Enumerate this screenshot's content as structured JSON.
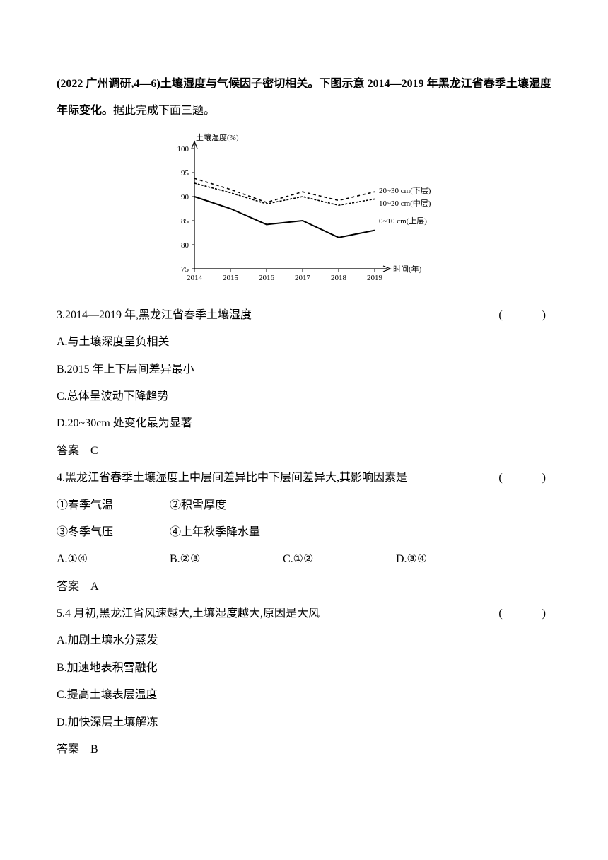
{
  "intro": {
    "bold_prefix": "(2022 广州调研,4—6)土壤湿度与气候因子密切相关。下图示意 2014—2019 年黑龙江省春季土壤湿度年际变化。",
    "tail": "据此完成下面三题。"
  },
  "chart": {
    "type": "line",
    "y_label": "土壤湿度(%)",
    "x_label": "时间(年)",
    "ylim": [
      75,
      100
    ],
    "ytick_step": 5,
    "yticks": [
      75,
      80,
      85,
      90,
      95,
      100
    ],
    "xticks": [
      2014,
      2015,
      2016,
      2017,
      2018,
      2019
    ],
    "series": [
      {
        "name": "20~30 cm(下层)",
        "dash": "4,4",
        "width": 1.6,
        "color": "#000000",
        "values": [
          93.8,
          91.5,
          88.8,
          91.0,
          89.2,
          91.0
        ]
      },
      {
        "name": "10~20 cm(中层)",
        "dash": "3,2",
        "width": 1.6,
        "color": "#000000",
        "values": [
          92.8,
          90.8,
          88.5,
          90.0,
          88.2,
          89.5
        ]
      },
      {
        "name": "0~10 cm(上层)",
        "dash": "0",
        "width": 2.0,
        "color": "#000000",
        "values": [
          90.0,
          87.5,
          84.2,
          85.0,
          81.5,
          83.0
        ]
      }
    ],
    "axis_color": "#000000",
    "background_color": "#ffffff",
    "font_size": 11
  },
  "q3": {
    "stem": "3.2014—2019 年,黑龙江省春季土壤湿度",
    "marker": "(　　)",
    "A": "A.与土壤深度呈负相关",
    "B": "B.2015 年上下层间差异最小",
    "C": "C.总体呈波动下降趋势",
    "D": "D.20~30cm 处变化最为显著",
    "answer_label": "答案　C"
  },
  "q4": {
    "stem": "4.黑龙江省春季土壤湿度上中层间差异比中下层间差异大,其影响因素是",
    "marker": "(　　)",
    "f1": "①春季气温",
    "f2": "②积雪厚度",
    "f3": "③冬季气压",
    "f4": "④上年秋季降水量",
    "A": "A.①④",
    "B": "B.②③",
    "C": "C.①②",
    "D": "D.③④",
    "answer_label": "答案　A"
  },
  "q5": {
    "stem": "5.4 月初,黑龙江省风速越大,土壤湿度越大,原因是大风",
    "marker": "(　　)",
    "A": "A.加剧土壤水分蒸发",
    "B": "B.加速地表积雪融化",
    "C": "C.提高土壤表层温度",
    "D": "D.加快深层土壤解冻",
    "answer_label": "答案　B"
  }
}
